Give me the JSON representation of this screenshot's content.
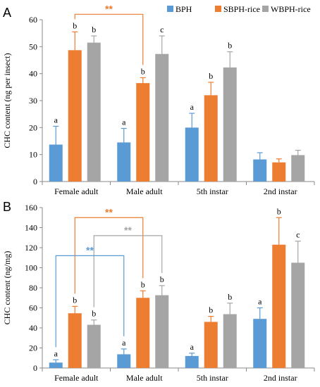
{
  "legend": [
    {
      "name": "BPH",
      "color": "#5b9bd5"
    },
    {
      "name": "SBPH-rice",
      "color": "#ed7d31"
    },
    {
      "name": "WBPH-rice",
      "color": "#a5a5a5"
    }
  ],
  "chart_data": [
    {
      "type": "bar",
      "panel_label": "A",
      "ylabel": "CHC content (ng per insect)",
      "ylim": [
        0,
        60
      ],
      "yticks": [
        "0",
        "10",
        "20",
        "30",
        "40",
        "50",
        "60"
      ],
      "categories": [
        "Female adult",
        "Male adult",
        "5th instar",
        "2nd instar"
      ],
      "series": [
        {
          "name": "BPH",
          "values": [
            13.7,
            14.5,
            20,
            8.2
          ],
          "errors": [
            6.8,
            5.2,
            5.3,
            2.5
          ],
          "letters": [
            "a",
            "a",
            "a",
            ""
          ]
        },
        {
          "name": "SBPH-rice",
          "values": [
            48.7,
            36.5,
            32,
            7.1
          ],
          "errors": [
            6.8,
            2,
            4.8,
            1.3
          ],
          "letters": [
            "b",
            "b",
            "b",
            ""
          ]
        },
        {
          "name": "WBPH-rice",
          "values": [
            51.5,
            47.3,
            42.3,
            9.8
          ],
          "errors": [
            2.5,
            6.7,
            5.8,
            1.8
          ],
          "letters": [
            "b",
            "c",
            "b",
            ""
          ]
        }
      ],
      "brackets": [
        {
          "label": "**",
          "color": "#ed7d31",
          "from": [
            0,
            1
          ],
          "to": [
            1,
            1
          ],
          "level": 62
        }
      ]
    },
    {
      "type": "bar",
      "panel_label": "B",
      "ylabel": "CHC content (ng/mg)",
      "ylim": [
        0,
        160
      ],
      "yticks": [
        "0",
        "20",
        "40",
        "60",
        "80",
        "100",
        "120",
        "140",
        "160"
      ],
      "categories": [
        "Female adult",
        "Male adult",
        "5th instar",
        "2nd instar"
      ],
      "series": [
        {
          "name": "BPH",
          "values": [
            5.4,
            13.7,
            12,
            49
          ],
          "errors": [
            2.8,
            5.3,
            2.8,
            11
          ],
          "letters": [
            "a",
            "a",
            "a",
            "a"
          ]
        },
        {
          "name": "SBPH-rice",
          "values": [
            54.6,
            70,
            46,
            123
          ],
          "errors": [
            6.9,
            7,
            5.5,
            27
          ],
          "letters": [
            "b",
            "b",
            "b",
            "b"
          ]
        },
        {
          "name": "WBPH-rice",
          "values": [
            43.1,
            72.6,
            53.7,
            105
          ],
          "errors": [
            4.8,
            9.6,
            11,
            21.5
          ],
          "letters": [
            "b",
            "b",
            "b",
            "c"
          ]
        }
      ],
      "brackets": [
        {
          "label": "**",
          "color": "#ed7d31",
          "from": [
            0,
            1
          ],
          "to": [
            1,
            1
          ],
          "level": 150
        },
        {
          "label": "**",
          "color": "#a5a5a5",
          "from": [
            0,
            2
          ],
          "to": [
            1,
            2
          ],
          "level": 132
        },
        {
          "label": "**",
          "color": "#5b9bd5",
          "from": [
            0,
            0
          ],
          "to": [
            1,
            0
          ],
          "level": 112
        }
      ]
    }
  ]
}
